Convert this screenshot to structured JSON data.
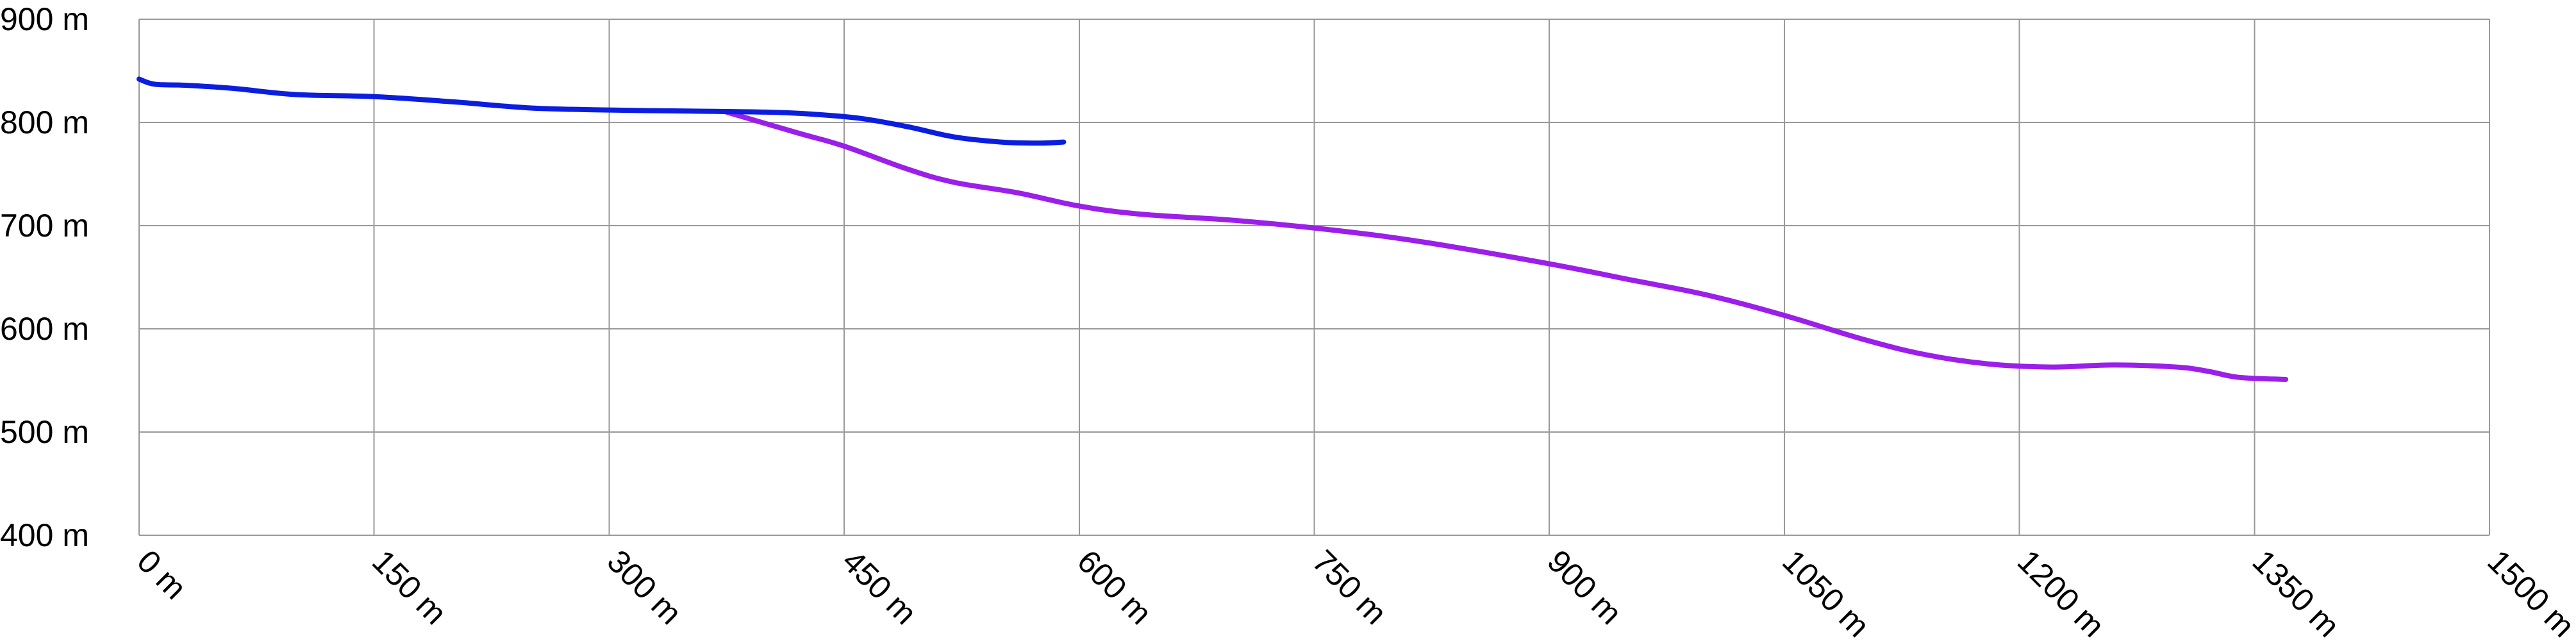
{
  "chart_data": {
    "type": "line",
    "title": "",
    "xlabel": "",
    "ylabel": "",
    "xlim": [
      0,
      1500
    ],
    "ylim": [
      400,
      900
    ],
    "grid": true,
    "x_ticks": [
      0,
      150,
      300,
      450,
      600,
      750,
      900,
      1050,
      1200,
      1350,
      1500
    ],
    "x_tick_labels": [
      "0 m",
      "150 m",
      "300 m",
      "450 m",
      "600 m",
      "750 m",
      "900 m",
      "1050 m",
      "1200 m",
      "1350 m",
      "1500 m"
    ],
    "y_ticks": [
      400,
      500,
      600,
      700,
      800,
      900
    ],
    "y_tick_labels": [
      "400 m",
      "500 m",
      "600 m",
      "700 m",
      "800 m",
      "900 m"
    ],
    "series": [
      {
        "color": "#0b1ee0",
        "points": [
          [
            0,
            842
          ],
          [
            10,
            837
          ],
          [
            30,
            836
          ],
          [
            60,
            833
          ],
          [
            100,
            827
          ],
          [
            150,
            825
          ],
          [
            200,
            820
          ],
          [
            250,
            814
          ],
          [
            300,
            812
          ],
          [
            350,
            811
          ],
          [
            400,
            810
          ],
          [
            430,
            808
          ],
          [
            460,
            804
          ],
          [
            490,
            796
          ],
          [
            520,
            786
          ],
          [
            550,
            781
          ],
          [
            575,
            780
          ],
          [
            590,
            781
          ]
        ]
      },
      {
        "color": "#9b1fe8",
        "points": [
          [
            375,
            810
          ],
          [
            420,
            790
          ],
          [
            450,
            777
          ],
          [
            490,
            755
          ],
          [
            520,
            742
          ],
          [
            560,
            732
          ],
          [
            600,
            719
          ],
          [
            640,
            711
          ],
          [
            700,
            705
          ],
          [
            760,
            696
          ],
          [
            820,
            684
          ],
          [
            900,
            663
          ],
          [
            950,
            648
          ],
          [
            1000,
            633
          ],
          [
            1050,
            613
          ],
          [
            1100,
            590
          ],
          [
            1140,
            575
          ],
          [
            1180,
            566
          ],
          [
            1220,
            563
          ],
          [
            1260,
            565
          ],
          [
            1300,
            563
          ],
          [
            1320,
            559
          ],
          [
            1340,
            553
          ],
          [
            1370,
            551
          ]
        ]
      }
    ]
  }
}
